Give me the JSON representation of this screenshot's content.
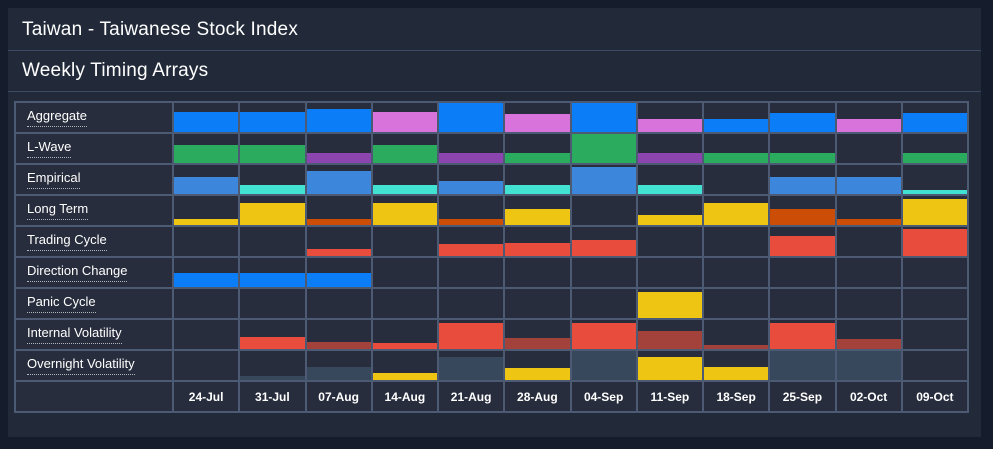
{
  "header": {
    "title": "Taiwan - Taiwanese Stock Index",
    "subtitle": "Weekly Timing Arrays"
  },
  "colors": {
    "blue": "#0b7ef7",
    "magenta": "#d873dc",
    "green": "#2bab5e",
    "purple": "#8c45ae",
    "midblue": "#3c86dc",
    "cyan": "#41e2d1",
    "yellow": "#eec513",
    "orange": "#cb4d06",
    "red": "#e74c3c",
    "darkred": "#a3423b",
    "slate": "#37485c",
    "panel_bg": "#222a3a",
    "cell_bg": "#272d3c",
    "grid_line": "#4d5a73"
  },
  "chart_data": {
    "type": "heatmap",
    "title": "Weekly Timing Arrays",
    "note": "Each cell holds one bottom-aligned bar; h = bar height as fraction of cell height, color keys map to colors{}",
    "columns": [
      "24-Jul",
      "31-Jul",
      "07-Aug",
      "14-Aug",
      "21-Aug",
      "28-Aug",
      "04-Sep",
      "11-Sep",
      "18-Sep",
      "25-Sep",
      "02-Oct",
      "09-Oct"
    ],
    "rows": [
      {
        "label": "Aggregate",
        "cells": [
          [
            "blue",
            0.68
          ],
          [
            "blue",
            0.68
          ],
          [
            "blue",
            0.78
          ],
          [
            "magenta",
            0.68
          ],
          [
            "blue",
            1.0
          ],
          [
            "magenta",
            0.62
          ],
          [
            "blue",
            1.0
          ],
          [
            "magenta",
            0.45
          ],
          [
            "blue",
            0.45
          ],
          [
            "blue",
            0.66
          ],
          [
            "magenta",
            0.45
          ],
          [
            "blue",
            0.64
          ]
        ]
      },
      {
        "label": "L-Wave",
        "cells": [
          [
            "green",
            0.62
          ],
          [
            "green",
            0.62
          ],
          [
            "purple",
            0.35
          ],
          [
            "green",
            0.62
          ],
          [
            "purple",
            0.35
          ],
          [
            "green",
            0.35
          ],
          [
            "green",
            1.0
          ],
          [
            "purple",
            0.35
          ],
          [
            "green",
            0.35
          ],
          [
            "green",
            0.35
          ],
          null,
          [
            "green",
            0.35
          ]
        ]
      },
      {
        "label": "Empirical",
        "cells": [
          [
            "midblue",
            0.58
          ],
          [
            "cyan",
            0.32
          ],
          [
            "midblue",
            0.8
          ],
          [
            "cyan",
            0.32
          ],
          [
            "midblue",
            0.45
          ],
          [
            "cyan",
            0.32
          ],
          [
            "midblue",
            0.92
          ],
          [
            "cyan",
            0.32
          ],
          null,
          [
            "midblue",
            0.58
          ],
          [
            "midblue",
            0.58
          ],
          [
            "cyan",
            0.15
          ]
        ]
      },
      {
        "label": "Long Term",
        "cells": [
          [
            "yellow",
            0.22
          ],
          [
            "yellow",
            0.75
          ],
          [
            "orange",
            0.22
          ],
          [
            "yellow",
            0.75
          ],
          [
            "orange",
            0.22
          ],
          [
            "yellow",
            0.55
          ],
          null,
          [
            "yellow",
            0.35
          ],
          [
            "yellow",
            0.75
          ],
          [
            "orange",
            0.55
          ],
          [
            "orange",
            0.22
          ],
          [
            "yellow",
            0.9
          ]
        ]
      },
      {
        "label": "Trading Cycle",
        "cells": [
          null,
          null,
          [
            "red",
            0.25
          ],
          null,
          [
            "red",
            0.4
          ],
          [
            "red",
            0.45
          ],
          [
            "red",
            0.55
          ],
          null,
          null,
          [
            "red",
            0.7
          ],
          null,
          [
            "red",
            0.92
          ]
        ]
      },
      {
        "label": "Direction Change",
        "cells": [
          [
            "blue",
            0.5
          ],
          [
            "blue",
            0.5
          ],
          [
            "blue",
            0.5
          ],
          null,
          null,
          null,
          null,
          null,
          null,
          null,
          null,
          null
        ]
      },
      {
        "label": "Panic Cycle",
        "cells": [
          null,
          null,
          null,
          null,
          null,
          null,
          null,
          [
            "yellow",
            0.9
          ],
          null,
          null,
          null,
          null
        ]
      },
      {
        "label": "Internal Volatility",
        "cells": [
          null,
          [
            "red",
            0.4
          ],
          [
            "darkred",
            0.25
          ],
          [
            "red",
            0.22
          ],
          [
            "red",
            0.88
          ],
          [
            "darkred",
            0.38
          ],
          [
            "red",
            0.9
          ],
          [
            "darkred",
            0.62
          ],
          [
            "darkred",
            0.15
          ],
          [
            "red",
            0.9
          ],
          [
            "darkred",
            0.35
          ],
          null
        ]
      },
      {
        "label": "Overnight Volatility",
        "cells": [
          null,
          [
            "slate",
            0.15
          ],
          [
            "slate",
            0.45
          ],
          [
            "yellow",
            0.25
          ],
          [
            "slate",
            0.8
          ],
          [
            "yellow",
            0.42
          ],
          [
            "slate",
            1.0
          ],
          [
            "yellow",
            0.78
          ],
          [
            "yellow",
            0.45
          ],
          [
            "slate",
            1.0
          ],
          [
            "slate",
            1.0
          ],
          null
        ]
      }
    ]
  }
}
